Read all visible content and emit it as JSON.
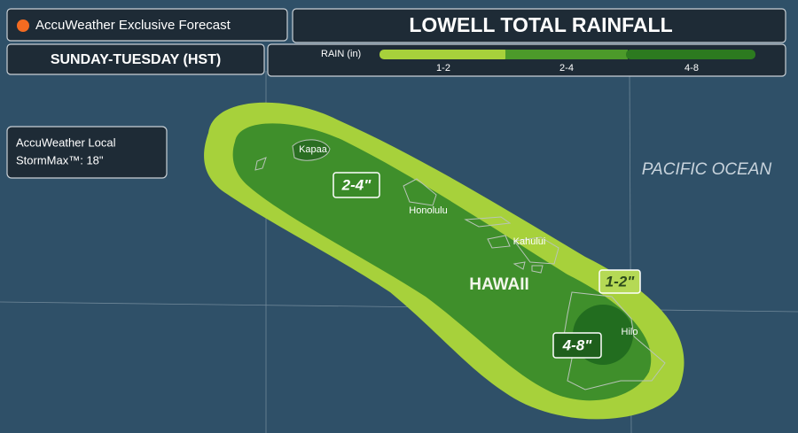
{
  "header": {
    "brand": "AccuWeather Exclusive Forecast",
    "title": "LOWELL TOTAL RAINFALL",
    "period": "SUNDAY-TUESDAY (HST)"
  },
  "legend": {
    "label": "RAIN (in)",
    "items": [
      "1-2",
      "2-4",
      "4-8"
    ]
  },
  "stormmax": {
    "lines": [
      "AccuWeather Local",
      "StormMax™: 18\""
    ]
  },
  "map": {
    "ocean_label": "PACIFIC OCEAN",
    "region_label": "HAWAII",
    "places": [
      "Kapaa",
      "Honolulu",
      "Kahului",
      "Hilo"
    ],
    "zone_labels": [
      "2-4\"",
      "1-2\"",
      "4-8\""
    ]
  }
}
